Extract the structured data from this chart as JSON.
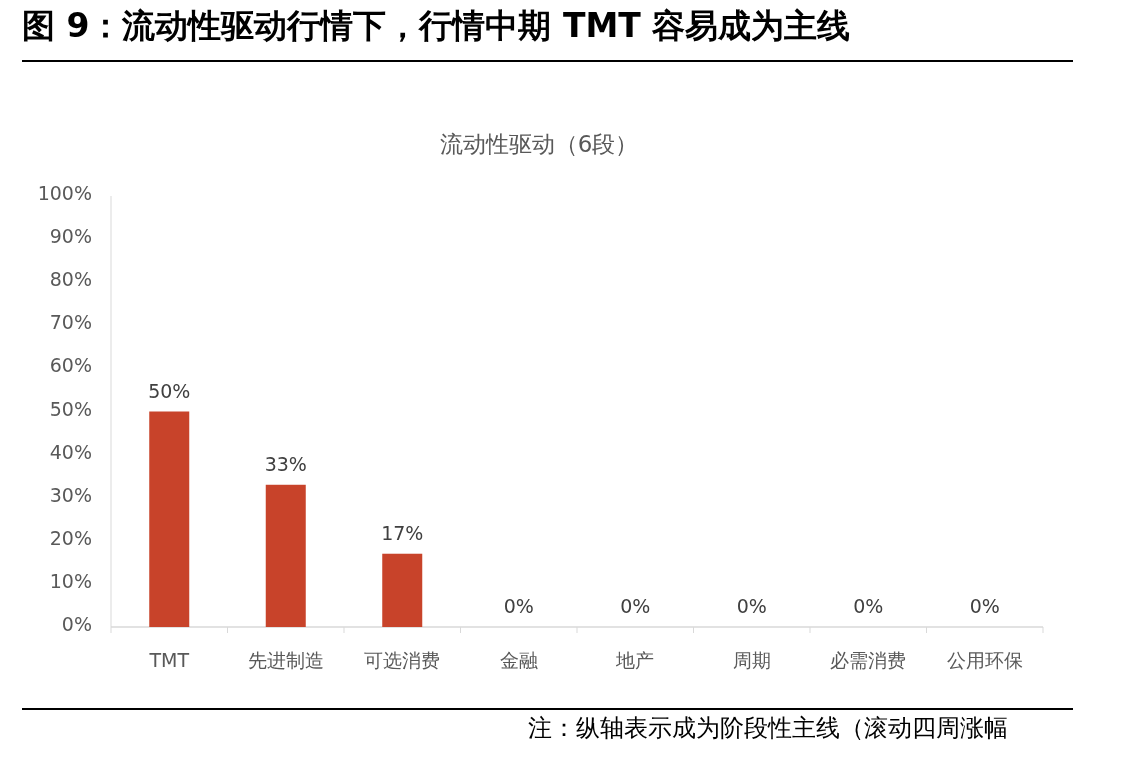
{
  "chart_data": {
    "type": "bar",
    "title": "图 9：流动性驱动行情下，行情中期 TMT 容易成为主线",
    "subtitle": "流动性驱动（6段）",
    "categories": [
      "TMT",
      "先进制造",
      "可选消费",
      "金融",
      "地产",
      "周期",
      "必需消费",
      "公用环保"
    ],
    "values": [
      50,
      33,
      17,
      0,
      0,
      0,
      0,
      0
    ],
    "value_labels": [
      "50%",
      "33%",
      "17%",
      "0%",
      "0%",
      "0%",
      "0%",
      "0%"
    ],
    "color": "#c8432a",
    "ylim": [
      0,
      100
    ],
    "yticks": [
      {
        "value": 0,
        "label": "0%"
      },
      {
        "value": 10,
        "label": "10%"
      },
      {
        "value": 20,
        "label": "20%"
      },
      {
        "value": 30,
        "label": "30%"
      },
      {
        "value": 40,
        "label": "40%"
      },
      {
        "value": 50,
        "label": "50%"
      },
      {
        "value": 60,
        "label": "60%"
      },
      {
        "value": 70,
        "label": "70%"
      },
      {
        "value": 80,
        "label": "80%"
      },
      {
        "value": 90,
        "label": "90%"
      },
      {
        "value": 100,
        "label": "100%"
      }
    ],
    "grid": false,
    "legend": false,
    "annotations": [
      "注：纵轴表示成为阶段性主线（滚动四周涨幅"
    ]
  }
}
